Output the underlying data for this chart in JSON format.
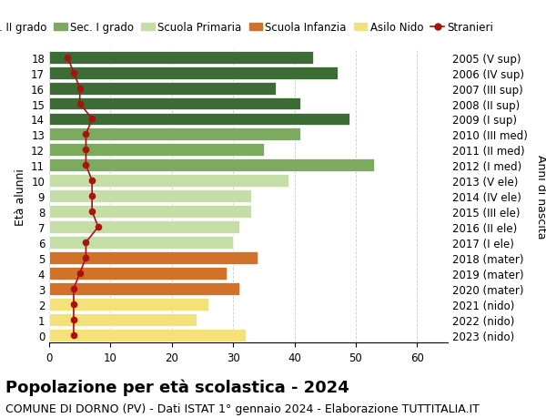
{
  "ages": [
    18,
    17,
    16,
    15,
    14,
    13,
    12,
    11,
    10,
    9,
    8,
    7,
    6,
    5,
    4,
    3,
    2,
    1,
    0
  ],
  "years": [
    "2005 (V sup)",
    "2006 (IV sup)",
    "2007 (III sup)",
    "2008 (II sup)",
    "2009 (I sup)",
    "2010 (III med)",
    "2011 (II med)",
    "2012 (I med)",
    "2013 (V ele)",
    "2014 (IV ele)",
    "2015 (III ele)",
    "2016 (II ele)",
    "2017 (I ele)",
    "2018 (mater)",
    "2019 (mater)",
    "2020 (mater)",
    "2021 (nido)",
    "2022 (nido)",
    "2023 (nido)"
  ],
  "bar_values": [
    43,
    47,
    37,
    41,
    49,
    41,
    35,
    53,
    39,
    33,
    33,
    31,
    30,
    34,
    29,
    31,
    26,
    24,
    32
  ],
  "bar_colors": [
    "#3d6b35",
    "#3d6b35",
    "#3d6b35",
    "#3d6b35",
    "#3d6b35",
    "#7caa5e",
    "#7caa5e",
    "#7caa5e",
    "#c5dea8",
    "#c5dea8",
    "#c5dea8",
    "#c5dea8",
    "#c5dea8",
    "#d2722a",
    "#d2722a",
    "#d2722a",
    "#f5e17a",
    "#f5e17a",
    "#f5e17a"
  ],
  "stranieri_values": [
    3,
    4,
    5,
    5,
    7,
    6,
    6,
    6,
    7,
    7,
    7,
    8,
    6,
    6,
    5,
    4,
    4,
    4,
    4
  ],
  "stranieri_color": "#aa1111",
  "title": "Popolazione per età scolastica - 2024",
  "subtitle": "COMUNE DI DORNO (PV) - Dati ISTAT 1° gennaio 2024 - Elaborazione TUTTITALIA.IT",
  "ylabel_left": "Età alunni",
  "ylabel_right": "Anni di nascita",
  "xlim": [
    0,
    65
  ],
  "xticks": [
    0,
    10,
    20,
    30,
    40,
    50,
    60
  ],
  "legend_labels": [
    "Sec. II grado",
    "Sec. I grado",
    "Scuola Primaria",
    "Scuola Infanzia",
    "Asilo Nido",
    "Stranieri"
  ],
  "legend_colors": [
    "#3d6b35",
    "#7caa5e",
    "#c5dea8",
    "#d2722a",
    "#f5e17a",
    "#aa1111"
  ],
  "background_color": "#ffffff",
  "grid_color": "#cccccc",
  "bar_height": 0.82,
  "title_fontsize": 13,
  "subtitle_fontsize": 9,
  "tick_fontsize": 8.5,
  "legend_fontsize": 8.5
}
